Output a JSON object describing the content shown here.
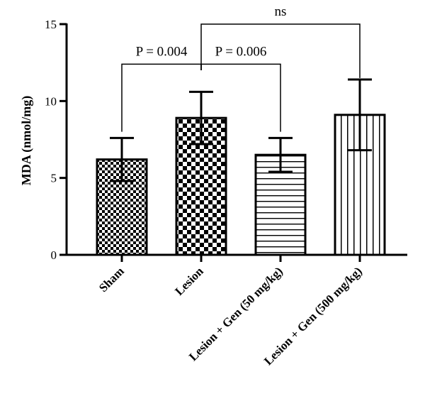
{
  "chart_data": {
    "type": "bar",
    "ylabel": "MDA (nmol/mg)",
    "ylim": [
      0,
      15
    ],
    "yticks": [
      0,
      5,
      10,
      15
    ],
    "categories": [
      "Sham",
      "Lesion",
      "Lesion + Gen (50 mg/kg)",
      "Lesion + Gen (500 mg/kg)"
    ],
    "values": [
      6.2,
      8.9,
      6.5,
      9.1
    ],
    "error_upper": [
      7.6,
      10.6,
      7.6,
      11.4
    ],
    "error_lower": [
      4.8,
      7.2,
      5.4,
      6.8
    ],
    "patterns": [
      "fine-checker",
      "coarse-checker",
      "horizontal-stripes",
      "vertical-stripes"
    ],
    "annotations": [
      {
        "from": 0,
        "to": 1,
        "label": "P = 0.004",
        "y": 12.4
      },
      {
        "from": 1,
        "to": 2,
        "label": "P = 0.006",
        "y": 12.4
      },
      {
        "from": 1,
        "to": 3,
        "label": "ns",
        "y": 15.0
      }
    ],
    "grid": false,
    "legend": "none"
  }
}
